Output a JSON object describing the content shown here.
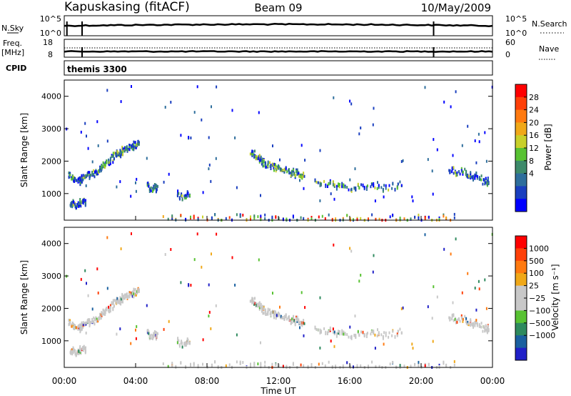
{
  "header": {
    "station": "Kapuskasing (fitACF)",
    "beam": "Beam 09",
    "date": "10/May/2009"
  },
  "panels": {
    "nsky_label": "N.Sky",
    "nsky_ticks": [
      "10^5",
      "10^0"
    ],
    "nsearch_label": "N.Search",
    "nsearch_ticks": [
      "10^5",
      "10^0"
    ],
    "freq_label": "Freq.",
    "freq_unit": "[MHz]",
    "freq_ticks": [
      "18",
      "8"
    ],
    "nave_label": "Nave",
    "nave_ticks": [
      "60",
      "0"
    ],
    "cpid_label": "CPID",
    "cpid_value": "themis 3300"
  },
  "axes": {
    "ylabel": "Slant Range [km]",
    "xlabel": "Time UT",
    "yticks": [
      1000,
      2000,
      3000,
      4000
    ],
    "ylim": [
      180,
      4500
    ],
    "xticks": [
      "00:00",
      "04:00",
      "08:00",
      "12:00",
      "16:00",
      "20:00",
      "00:00"
    ],
    "xlim_hours": [
      0,
      24
    ]
  },
  "colorbars": {
    "power": {
      "label": "Power [dB]",
      "ticks": [
        "28",
        "24",
        "20",
        "16",
        "12",
        "8",
        "4"
      ],
      "colors": [
        "#0000ff",
        "#1a3fbf",
        "#2e6e9c",
        "#3d8a6a",
        "#58c232",
        "#c8d02a",
        "#f0a818",
        "#ff7a10",
        "#ff4008",
        "#ff0000"
      ]
    },
    "velocity": {
      "label": "Velocity [m s⁻¹]",
      "ticks": [
        "1000",
        "500",
        "100",
        "25",
        "−25",
        "−100",
        "−500",
        "−1000"
      ],
      "colors": [
        "#2020c8",
        "#1a60a0",
        "#2e8a5e",
        "#58c232",
        "#c8c8c8",
        "#c8c8c8",
        "#f0a818",
        "#ff7a10",
        "#ff4008",
        "#ff0000"
      ]
    }
  },
  "chart_data": {
    "type": "scatter",
    "description_series": [
      {
        "name": "",
        "x": [
          0.2,
          0.5,
          0.8,
          1.0,
          1.3,
          1.7,
          2.0,
          2.3,
          2.7,
          3.0,
          3.3,
          3.7,
          4.0,
          4.2
        ],
        "y": [
          1550,
          1500,
          1450,
          1500,
          1600,
          1700,
          1850,
          2000,
          2150,
          2250,
          2350,
          2450,
          2550,
          2600
        ]
      },
      {
        "name": "",
        "x": [
          10.4,
          10.7,
          11.0,
          11.3,
          11.7,
          12.0,
          12.5,
          13.0,
          13.5
        ],
        "y": [
          2300,
          2200,
          2050,
          1950,
          1850,
          1800,
          1700,
          1650,
          1550
        ]
      },
      {
        "name": "",
        "x": [
          14.0,
          15.0,
          16.0,
          17.0,
          18.0,
          19.0
        ],
        "y": [
          1400,
          1300,
          1250,
          1250,
          1250,
          1300
        ]
      },
      {
        "name": "",
        "x": [
          21.5,
          22.0,
          22.5,
          23.0,
          23.5,
          23.8
        ],
        "y": [
          1750,
          1700,
          1650,
          1550,
          1450,
          1350
        ]
      },
      {
        "name": "",
        "x": [
          0.3,
          0.6,
          0.9,
          1.2
        ],
        "y": [
          750,
          700,
          750,
          800
        ]
      },
      {
        "name": "",
        "x": [
          4.6,
          5.0,
          5.2
        ],
        "y": [
          1250,
          1200,
          1250
        ]
      },
      {
        "name": "",
        "x": [
          6.3,
          6.7,
          7.0
        ],
        "y": [
          1000,
          950,
          1000
        ]
      },
      {
        "name": "",
        "x": [
          5.5,
          8.0,
          10.0,
          12.0,
          14.0,
          16.0,
          18.0,
          20.0,
          22.0
        ],
        "y": [
          250,
          300,
          280,
          250,
          250,
          260,
          250,
          250,
          270
        ]
      }
    ]
  }
}
